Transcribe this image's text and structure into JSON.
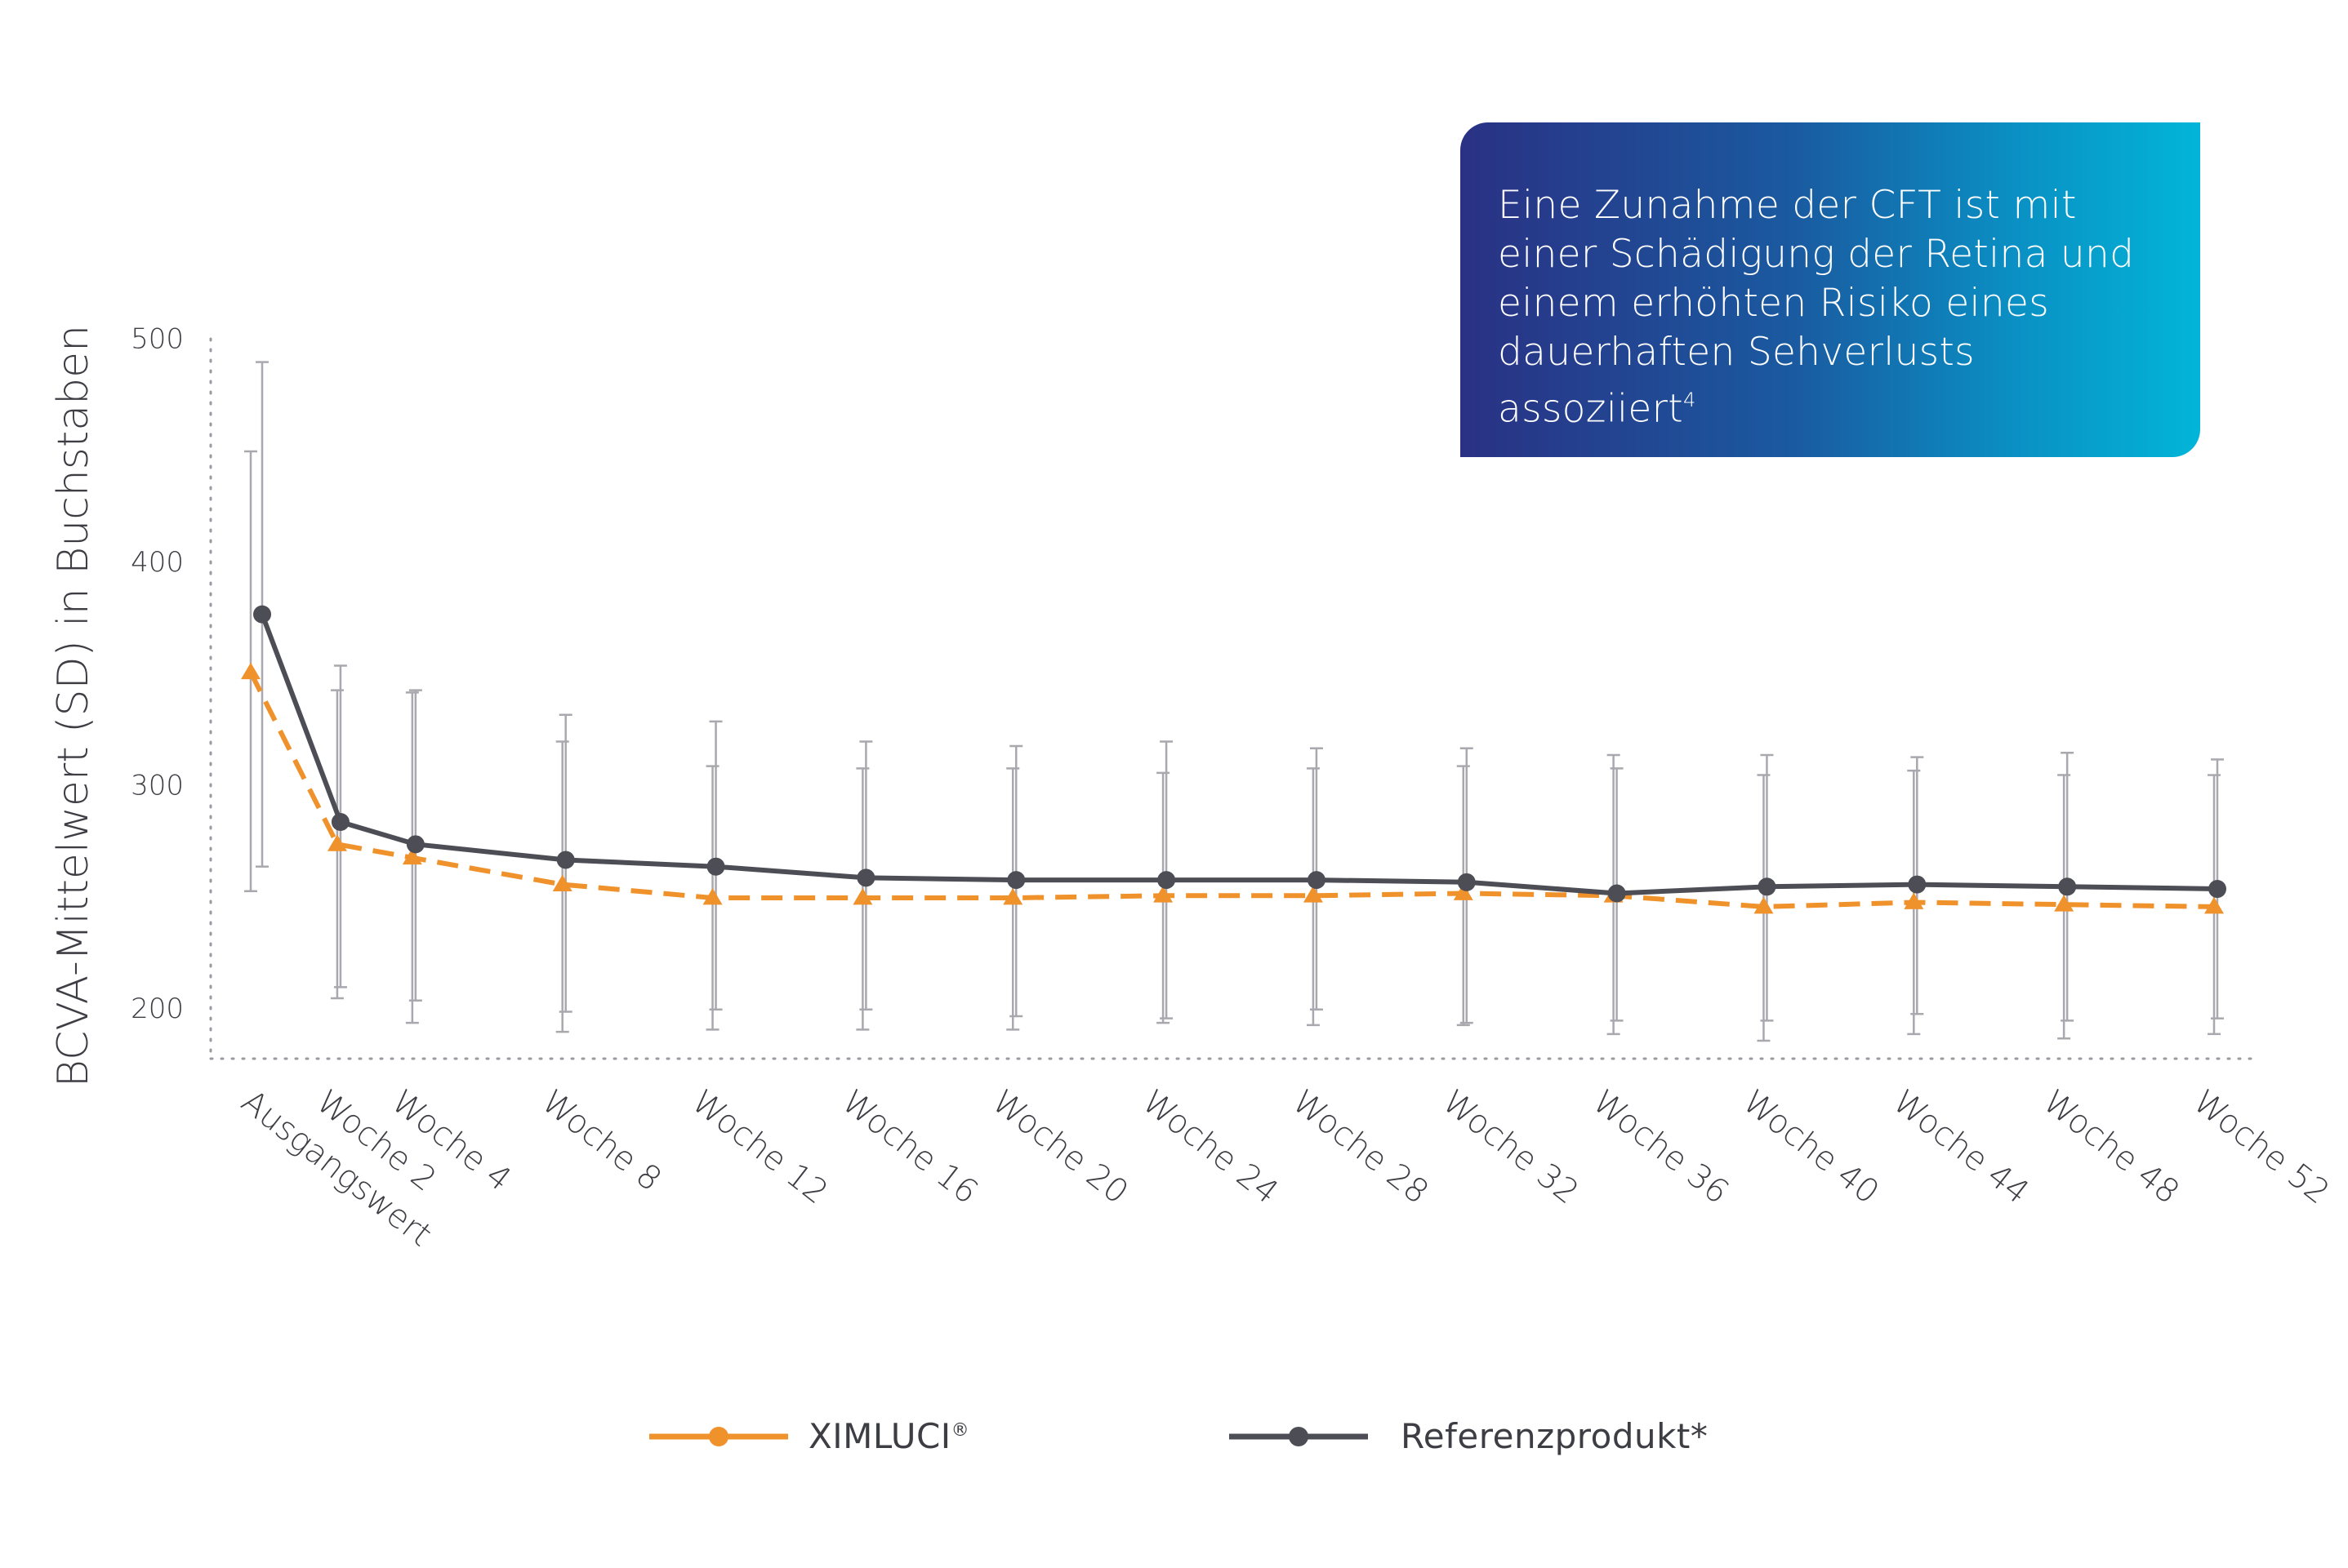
{
  "callout": {
    "text": "Eine Zunahme der CFT ist mit einer Schädigung der Retina und einem erhöhten Risiko eines dauerhaften Sehverlusts assoziiert",
    "footnote": "4",
    "colors": [
      "#2a3184",
      "#02b5d8"
    ]
  },
  "legend": {
    "series1_label": "XIMLUCI",
    "series1_mark": "®",
    "series2_label": "Referenzprodukt*"
  },
  "chart_data": {
    "type": "line",
    "ylabel": "BCVA-Mittelwert (SD) in Buchstaben",
    "xlabel": "",
    "ylim": [
      175,
      510
    ],
    "yticks": [
      200,
      300,
      400,
      500
    ],
    "grid": false,
    "legend_position": "bottom-center",
    "categories": [
      "Ausgangswert",
      "Woche 2",
      "Woche 4",
      "Woche 8",
      "Woche 12",
      "Woche 16",
      "Woche 20",
      "Woche 24",
      "Woche 28",
      "Woche 32",
      "Woche 36",
      "Woche 40",
      "Woche 44",
      "Woche 48",
      "Woche 52"
    ],
    "x": [
      0,
      2,
      4,
      8,
      12,
      16,
      20,
      24,
      28,
      32,
      36,
      40,
      44,
      48,
      52
    ],
    "series": [
      {
        "name": "XIMLUCI®",
        "color": "#f0922b",
        "style": "dashed",
        "marker": "triangle",
        "values": [
          350,
          273,
          267,
          255,
          249,
          249,
          249,
          250,
          250,
          251,
          250,
          245,
          247,
          246,
          245
        ],
        "err_low": [
          252,
          204,
          193,
          189,
          190,
          190,
          190,
          193,
          192,
          192,
          188,
          185,
          188,
          186,
          188
        ],
        "err_high": [
          449,
          342,
          341,
          319,
          308,
          307,
          307,
          305,
          307,
          308,
          313,
          304,
          306,
          304,
          304
        ]
      },
      {
        "name": "Referenzprodukt*",
        "color": "#4d4d56",
        "style": "solid",
        "marker": "circle",
        "values": [
          376,
          283,
          273,
          266,
          263,
          258,
          257,
          257,
          257,
          256,
          251,
          254,
          255,
          254,
          253
        ],
        "err_low": [
          263,
          209,
          203,
          198,
          199,
          199,
          196,
          195,
          199,
          193,
          194,
          194,
          197,
          194,
          195
        ],
        "err_high": [
          489,
          353,
          342,
          331,
          328,
          319,
          317,
          319,
          316,
          316,
          307,
          313,
          312,
          314,
          311
        ]
      }
    ]
  }
}
